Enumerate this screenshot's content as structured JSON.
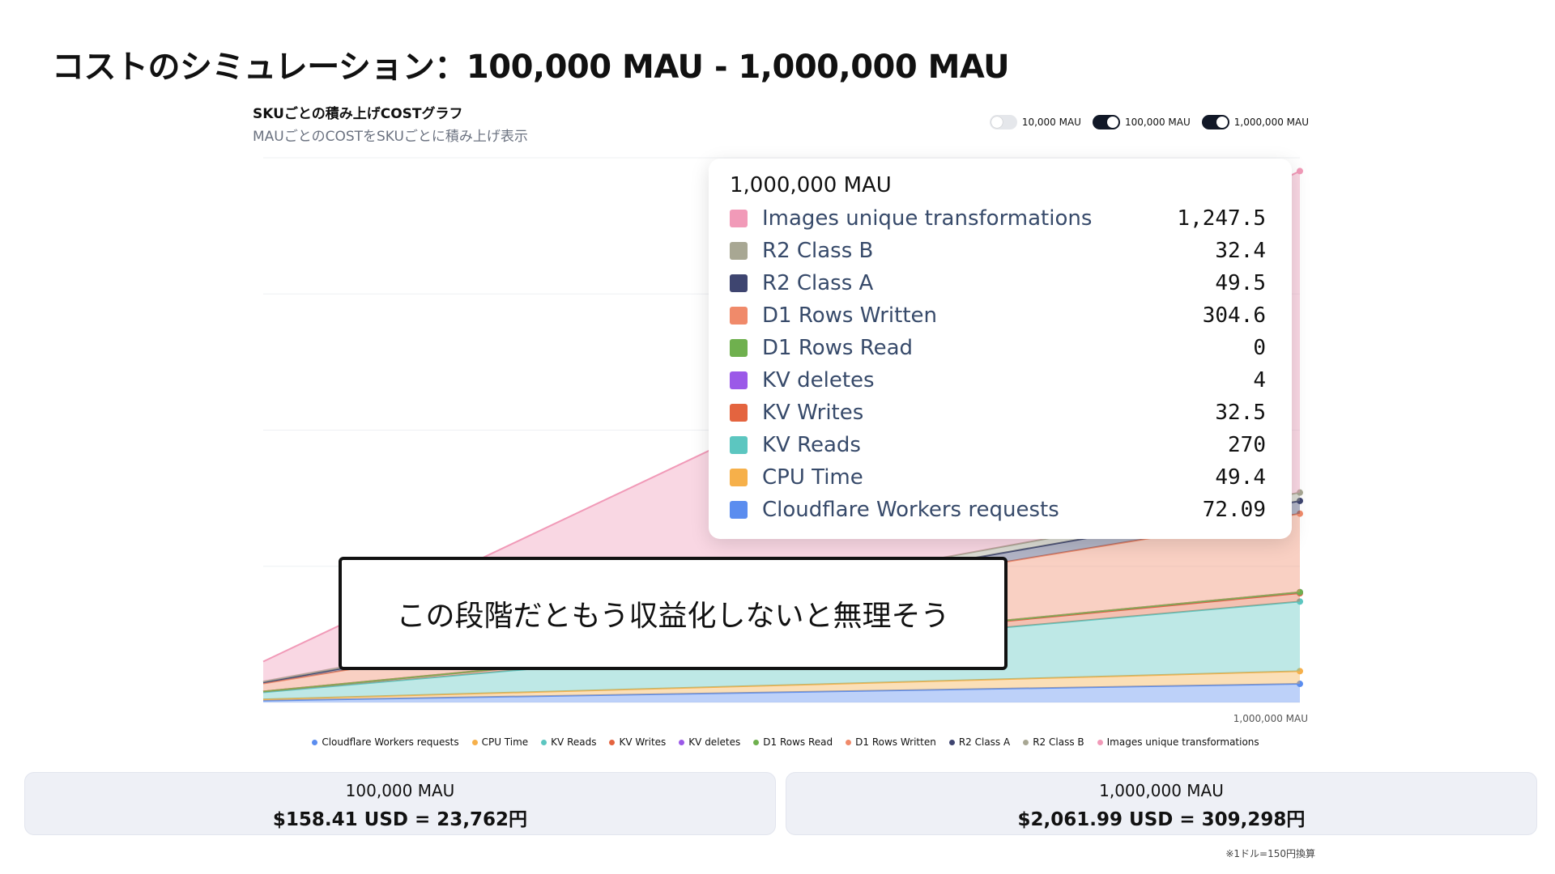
{
  "slide_title": "コストのシミュレーション：100,000 MAU - 1,000,000 MAU",
  "chart_card": {
    "heading": "SKUごとの積み上げCOSTグラフ",
    "subheading": "MAUごとのCOSTをSKUごとに積み上げ表示"
  },
  "toggles": [
    {
      "label": "10,000 MAU",
      "checked": false
    },
    {
      "label": "100,000 MAU",
      "checked": true
    },
    {
      "label": "1,000,000 MAU",
      "checked": true
    }
  ],
  "chart_data": {
    "type": "area",
    "stacked": true,
    "x": [
      "100,000 MAU",
      "1,000,000 MAU"
    ],
    "x_tick_labels_shown": [
      "1,000,000 MAU"
    ],
    "grid": true,
    "legend_position": "bottom",
    "series": [
      {
        "name": "Cloudflare Workers requests",
        "color": "#5b8def",
        "values": [
          7.2,
          72.09
        ]
      },
      {
        "name": "CPU Time",
        "color": "#f6b04a",
        "values": [
          4.9,
          49.4
        ]
      },
      {
        "name": "KV Reads",
        "color": "#5cc6c0",
        "values": [
          27.0,
          270
        ]
      },
      {
        "name": "KV Writes",
        "color": "#e4643f",
        "values": [
          3.3,
          32.5
        ]
      },
      {
        "name": "KV deletes",
        "color": "#9b59e8",
        "values": [
          0.4,
          4
        ]
      },
      {
        "name": "D1 Rows Read",
        "color": "#6fb04e",
        "values": [
          0,
          0
        ]
      },
      {
        "name": "D1 Rows Written",
        "color": "#f08a6a",
        "values": [
          30.5,
          304.6
        ]
      },
      {
        "name": "R2 Class A",
        "color": "#3e4570",
        "values": [
          5.0,
          49.5
        ]
      },
      {
        "name": "R2 Class B",
        "color": "#a8a793",
        "values": [
          3.2,
          32.4
        ]
      },
      {
        "name": "Images unique transformations",
        "color": "#f19ab8",
        "values": [
          77.0,
          1247.5
        ]
      }
    ]
  },
  "tooltip": {
    "title": "1,000,000 MAU",
    "rows": [
      {
        "label": "Images unique transformations",
        "value": "1,247.5",
        "color": "#f19ab8"
      },
      {
        "label": "R2 Class B",
        "value": "32.4",
        "color": "#a8a793"
      },
      {
        "label": "R2 Class A",
        "value": "49.5",
        "color": "#3e4570"
      },
      {
        "label": "D1 Rows Written",
        "value": "304.6",
        "color": "#f08a6a"
      },
      {
        "label": "D1 Rows Read",
        "value": "0",
        "color": "#6fb04e"
      },
      {
        "label": "KV deletes",
        "value": "4",
        "color": "#9b59e8"
      },
      {
        "label": "KV Writes",
        "value": "32.5",
        "color": "#e4643f"
      },
      {
        "label": "KV Reads",
        "value": "270",
        "color": "#5cc6c0"
      },
      {
        "label": "CPU Time",
        "value": "49.4",
        "color": "#f6b04a"
      },
      {
        "label": "Cloudflare Workers requests",
        "value": "72.09",
        "color": "#5b8def"
      }
    ]
  },
  "callout_text": "この段階だともう収益化しないと無理そう",
  "summary": [
    {
      "title": "100,000 MAU",
      "value": "$158.41 USD = 23,762円"
    },
    {
      "title": "1,000,000 MAU",
      "value": "$2,061.99 USD = 309,298円"
    }
  ],
  "footnote": "※1ドル=150円換算"
}
